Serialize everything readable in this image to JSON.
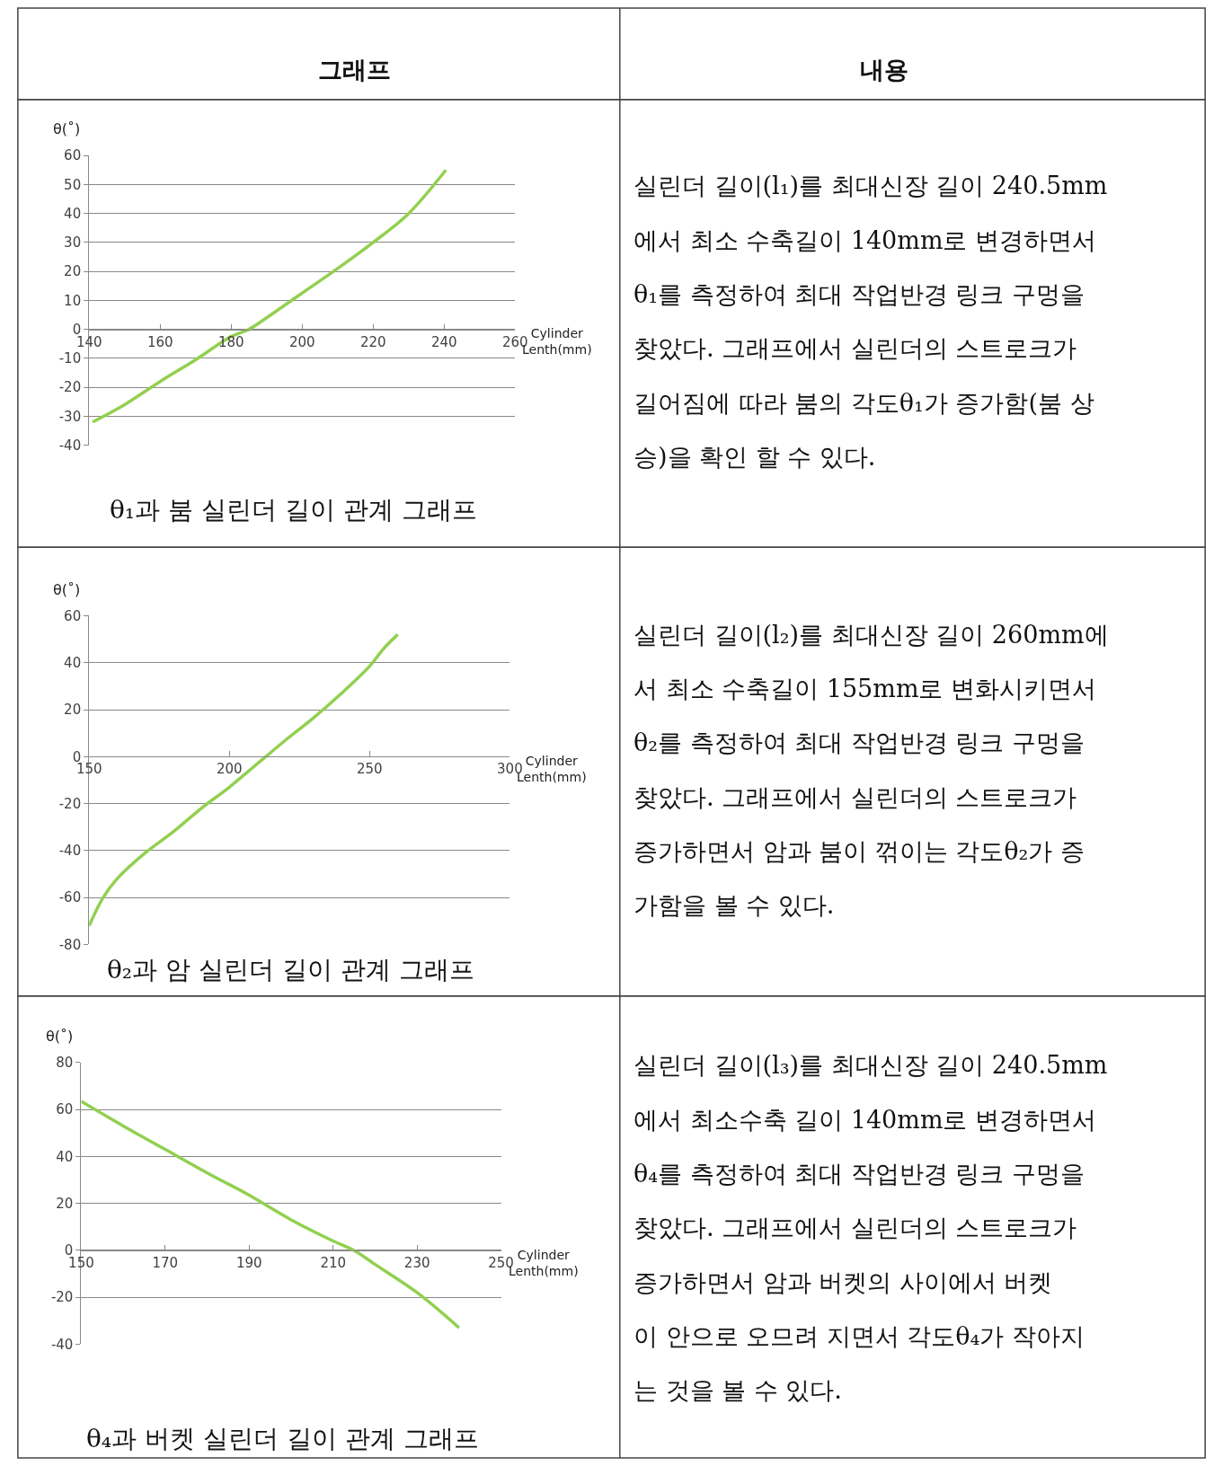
{
  "chart_data": [
    {
      "type": "line",
      "title": "θ₁과 붐 실린더 길이 관계 그래프",
      "xlabel": "Cylinder\nLenth(mm)",
      "ylabel": "θ(˚)",
      "x": [
        141,
        150,
        160,
        170,
        180,
        185,
        190,
        200,
        210,
        220,
        230,
        240.5
      ],
      "series": [
        {
          "color": "#92d050",
          "values": [
            -32,
            -26,
            -18,
            -10.5,
            -2.5,
            0,
            4,
            12.5,
            21,
            30,
            40,
            55
          ]
        }
      ],
      "xlim": [
        140,
        260
      ],
      "xticks": [
        140,
        160,
        180,
        200,
        220,
        240,
        260
      ],
      "ylim": [
        -40,
        60
      ],
      "yticks": [
        -40,
        -30,
        -20,
        -10,
        0,
        10,
        20,
        30,
        40,
        50,
        60
      ],
      "grid": "y",
      "annotations": [
        "그래프",
        "내용",
        "실린더 길이(l₁)를 최대신장 길이 240.5mm\n에서 최소 수축길이 140mm로 변경하면서\nθ₁를 측정하여 최대 작업반경 링크 구멍을\n찾았다. 그래프에서 실린더의 스트로크가\n길어짐에 따라 붐의 각도θ₁가 증가함(붐 상\n승)을 확인 할 수 있다."
      ]
    },
    {
      "type": "line",
      "title": "θ₂과 암 실린더 길이 관계 그래프",
      "xlabel": "Cylinder\nLenth(mm)",
      "ylabel": "θ(˚)",
      "x": [
        150,
        155,
        160,
        170,
        180,
        190,
        200,
        210,
        213,
        220,
        230,
        240,
        250,
        255,
        260
      ],
      "series": [
        {
          "color": "#92d050",
          "values": [
            -72,
            -60,
            -52,
            -41,
            -32,
            -22,
            -13,
            -3,
            0,
            7,
            16.5,
            27,
            38.5,
            46,
            52
          ]
        }
      ],
      "xlim": [
        150,
        300
      ],
      "xticks": [
        150,
        200,
        250,
        300
      ],
      "ylim": [
        -80,
        60
      ],
      "yticks": [
        -80,
        -60,
        -40,
        -20,
        0,
        20,
        40,
        60
      ],
      "grid": "y",
      "annotations": [
        "실린더 길이(l₂)를 최대신장 길이 260mm에\n서 최소 수축길이 155mm로 변화시키면서\nθ₂를 측정하여 최대 작업반경 링크 구멍을\n찾았다. 그래프에서 실린더의 스트로크가\n증가하면서 암과 붐이 꺾이는 각도θ₂가 증\n가함을 볼 수 있다."
      ]
    },
    {
      "type": "line",
      "title": "θ₄과 버켓 실린더 길이 관계 그래프",
      "xlabel": "Cylinder\nLenth(mm)",
      "ylabel": "θ(˚)",
      "x": [
        150,
        160,
        170,
        180,
        190,
        200,
        210,
        215,
        220,
        230,
        240
      ],
      "series": [
        {
          "color": "#92d050",
          "values": [
            63.5,
            53,
            43,
            33,
            23.5,
            13,
            4,
            0,
            -6,
            -18,
            -33
          ]
        }
      ],
      "xlim": [
        150,
        250
      ],
      "xticks": [
        150,
        170,
        190,
        210,
        230,
        250
      ],
      "ylim": [
        -40,
        80
      ],
      "yticks": [
        -40,
        -20,
        0,
        20,
        40,
        60,
        80
      ],
      "grid": "y",
      "annotations": [
        "실린더 길이(l₃)를 최대신장 길이 240.5mm\n에서 최소수축 길이 140mm로 변경하면서\nθ₄를 측정하여 최대 작업반경 링크 구멍을\n찾았다. 그래프에서 실린더의 스트로크가\n증가하면서 암과 버켓의 사이에서 버켓\n이 안으로 오므려 지면서 각도θ₄가 작아지\n는 것을 볼 수 있다."
      ]
    }
  ]
}
